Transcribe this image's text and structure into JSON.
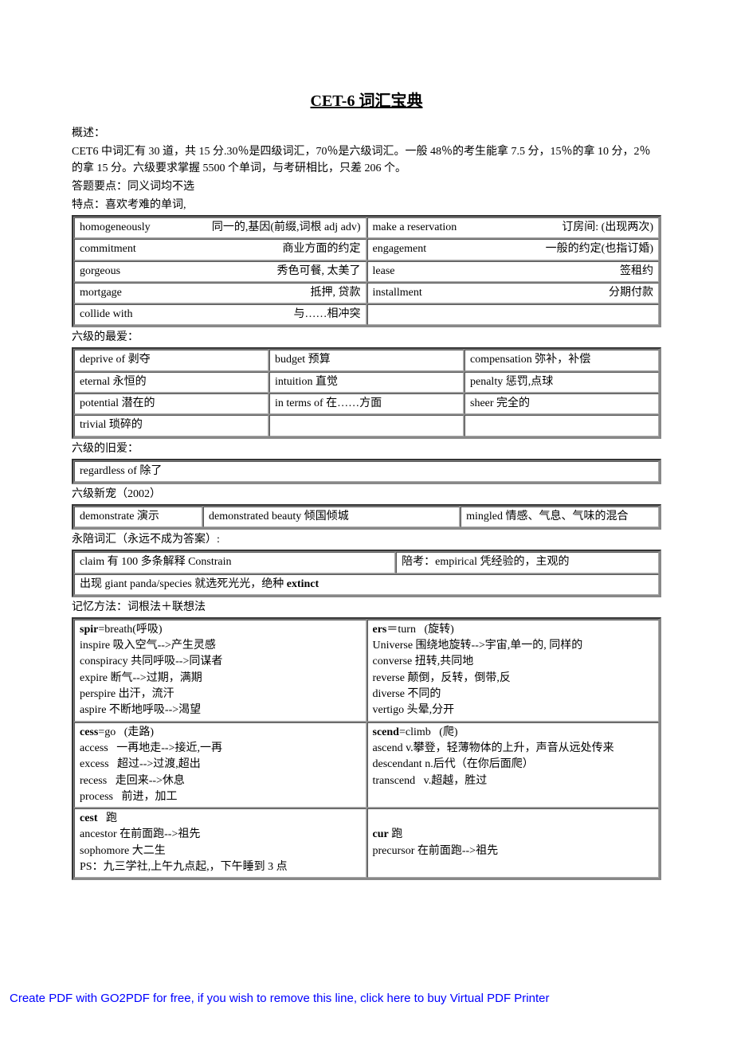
{
  "title": "CET-6 词汇宝典",
  "intro": {
    "p1": "概述：",
    "p2": "CET6 中词汇有 30 道，共 15 分.30％是四级词汇，70％是六级词汇。一般 48％的考生能拿 7.5 分，15％的拿 10 分，2％的拿 15 分。六级要求掌握 5500 个单词，与考研相比，只差 206 个。",
    "p3": "答题要点：同义词均不选",
    "p4": "特点：喜欢考难的单词,"
  },
  "table1": {
    "rows": [
      [
        "homogeneously",
        "同一的,基因(前缀,词根 adj   adv)",
        "make a reservation",
        "订房间: (出现两次)"
      ],
      [
        "commitment",
        "商业方面的约定",
        "engagement",
        "一般的约定(也指订婚)"
      ],
      [
        "gorgeous",
        "秀色可餐, 太美了",
        "lease",
        "签租约"
      ],
      [
        "mortgage",
        "抵押, 贷款",
        "installment",
        "分期付款"
      ],
      [
        "collide with",
        "与……相冲突",
        "",
        ""
      ]
    ]
  },
  "label_fav": "六级的最爱：",
  "table2": {
    "rows": [
      [
        "deprive of 剥夺",
        "budget 预算",
        "compensation 弥补，补偿"
      ],
      [
        "eternal 永恒的",
        "intuition 直觉",
        "penalty 惩罚,点球"
      ],
      [
        "potential 潜在的",
        "in terms of 在……方面",
        "sheer 完全的"
      ],
      [
        "trivial 琐碎的",
        "",
        ""
      ]
    ]
  },
  "label_old": "六级的旧爱：",
  "table3": {
    "cell": "regardless of 除了"
  },
  "label_new": "六级新宠（2002）",
  "table4": {
    "rows": [
      [
        "demonstrate 演示",
        "demonstrated beauty 倾国倾城",
        "mingled 情感、气息、气味的混合"
      ]
    ]
  },
  "label_never": "永陪词汇（永远不成为答案）:",
  "table5": {
    "row1": [
      "claim 有 100 多条解释 Constrain",
      "陪考：empirical 凭经验的，主观的"
    ],
    "row2": "出现 giant panda/species 就选死光光，绝种 extinct"
  },
  "label_mem": "记忆方法：词根法＋联想法",
  "table6": {
    "rows": [
      [
        "<b>spir</b>=breath(呼吸)<br>inspire 吸入空气-->产生灵感<br>conspiracy 共同呼吸-->同谋者<br>expire 断气-->过期，满期<br>perspire 出汗，流汗<br>aspire 不断地呼吸-->渴望",
        "<b>ers</b>＝turn&nbsp;&nbsp;&nbsp;(旋转)<br>Universe 围绕地旋转-->宇宙,单一的, 同样的<br>converse 扭转,共同地<br>reverse 颠倒，反转，倒带,反<br>diverse 不同的<br>vertigo 头晕,分开"
      ],
      [
        "<b>cess</b>=go&nbsp;&nbsp;&nbsp;(走路)<br>access&nbsp;&nbsp;&nbsp;一再地走-->接近,一再<br>excess&nbsp;&nbsp;&nbsp;超过-->过渡,超出<br>recess&nbsp;&nbsp;&nbsp;走回来-->休息<br>process&nbsp;&nbsp;&nbsp;前进，加工",
        "<b>scend</b>=climb&nbsp;&nbsp;&nbsp;(爬)<br>ascend v.攀登，轻薄物体的上升，声音从远处传来<br>descendant n.后代（在你后面爬）<br>transcend&nbsp;&nbsp;&nbsp;v.超越，胜过"
      ],
      [
        "<b>cest</b>&nbsp;&nbsp;&nbsp;跑<br>ancestor 在前面跑-->祖先<br>sophomore 大二生<br>PS：九三学社,上午九点起,，下午睡到 3 点",
        "<br><b>cur</b> 跑<br>precursor 在前面跑-->祖先"
      ]
    ]
  },
  "footer": "Create PDF with GO2PDF for free, if you wish to remove this line, click here to buy Virtual PDF Printer",
  "colors": {
    "text": "#000000",
    "link": "#0000ff",
    "bg": "#ffffff",
    "table_border": "#888888"
  }
}
